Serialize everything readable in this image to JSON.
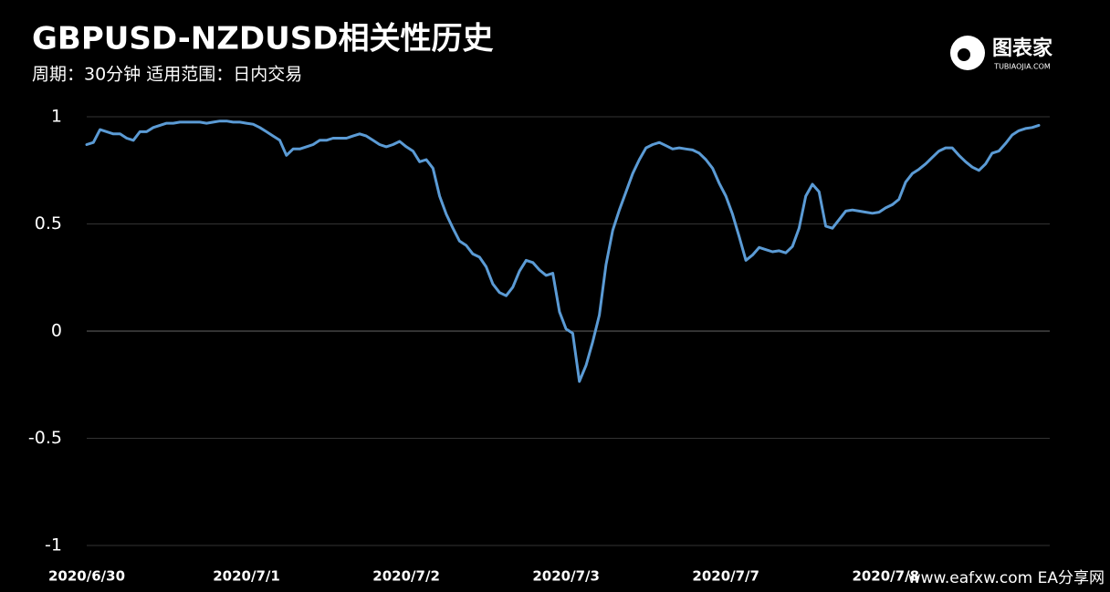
{
  "chart_data": {
    "type": "line",
    "title": "GBPUSD-NZDUSD相关性历史",
    "subtitle": "周期：30分钟  适用范围：日内交易",
    "logo": {
      "name": "图表家",
      "site": "TUBIAOJIA.COM"
    },
    "watermark": "www.eafxw.com  EA分享网",
    "categories": [
      "2020/6/30",
      null,
      null,
      null,
      null,
      null,
      null,
      null,
      null,
      null,
      null,
      null,
      null,
      null,
      null,
      null,
      null,
      null,
      null,
      null,
      null,
      null,
      null,
      null,
      "2020/7/1",
      null,
      null,
      null,
      null,
      null,
      null,
      null,
      null,
      null,
      null,
      null,
      null,
      null,
      null,
      null,
      null,
      null,
      null,
      null,
      null,
      null,
      null,
      null,
      "2020/7/2",
      null,
      null,
      null,
      null,
      null,
      null,
      null,
      null,
      null,
      null,
      null,
      null,
      null,
      null,
      null,
      null,
      null,
      null,
      null,
      null,
      null,
      null,
      null,
      "2020/7/3",
      null,
      null,
      null,
      null,
      null,
      null,
      null,
      null,
      null,
      null,
      null,
      null,
      null,
      null,
      null,
      null,
      null,
      null,
      null,
      null,
      null,
      null,
      null,
      "2020/7/7",
      null,
      null,
      null,
      null,
      null,
      null,
      null,
      null,
      null,
      null,
      null,
      null,
      null,
      null,
      null,
      null,
      null,
      null,
      null,
      null,
      null,
      null,
      null,
      "2020/7/8",
      null,
      null,
      null,
      null,
      null,
      null,
      null,
      null,
      null,
      null,
      null,
      null,
      null,
      null,
      null,
      null,
      null,
      null,
      null,
      null,
      null,
      null,
      null
    ],
    "values": [
      0.87,
      0.88,
      0.94,
      0.93,
      0.92,
      0.92,
      0.9,
      0.89,
      0.93,
      0.93,
      0.95,
      0.96,
      0.97,
      0.97,
      0.975,
      0.975,
      0.975,
      0.975,
      0.97,
      0.975,
      0.98,
      0.98,
      0.975,
      0.975,
      0.97,
      0.965,
      0.95,
      0.93,
      0.91,
      0.89,
      0.82,
      0.85,
      0.85,
      0.86,
      0.87,
      0.89,
      0.89,
      0.9,
      0.9,
      0.9,
      0.91,
      0.92,
      0.91,
      0.89,
      0.87,
      0.86,
      0.87,
      0.885,
      0.86,
      0.84,
      0.79,
      0.8,
      0.76,
      0.63,
      0.545,
      0.48,
      0.42,
      0.4,
      0.36,
      0.345,
      0.3,
      0.22,
      0.18,
      0.165,
      0.205,
      0.28,
      0.33,
      0.32,
      0.285,
      0.26,
      0.27,
      0.09,
      0.01,
      -0.01,
      -0.235,
      -0.16,
      -0.05,
      0.075,
      0.31,
      0.47,
      0.565,
      0.65,
      0.735,
      0.8,
      0.855,
      0.87,
      0.88,
      0.865,
      0.85,
      0.855,
      0.85,
      0.845,
      0.83,
      0.8,
      0.76,
      0.69,
      0.63,
      0.545,
      0.44,
      0.33,
      0.355,
      0.39,
      0.38,
      0.37,
      0.375,
      0.365,
      0.395,
      0.48,
      0.63,
      0.685,
      0.65,
      0.49,
      0.48,
      0.52,
      0.56,
      0.565,
      0.56,
      0.555,
      0.55,
      0.555,
      0.575,
      0.59,
      0.615,
      0.695,
      0.735,
      0.755,
      0.78,
      0.81,
      0.84,
      0.855,
      0.855,
      0.82,
      0.79,
      0.765,
      0.75,
      0.78,
      0.83,
      0.84,
      0.875,
      0.915,
      0.935,
      0.945,
      0.95,
      0.96
    ],
    "color": "#5b9bd5",
    "ylim": [
      -1,
      1
    ],
    "yticks": [
      -1,
      -0.5,
      0,
      0.5,
      1
    ],
    "grid": true
  }
}
